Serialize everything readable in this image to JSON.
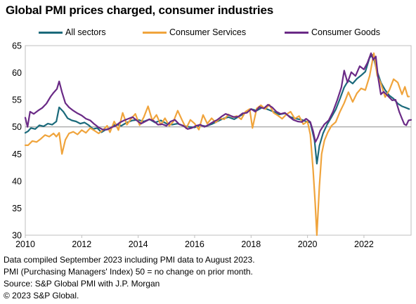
{
  "title": "Global PMI prices charged, consumer industries",
  "footer": [
    "Data compiled September 2023 including PMI data to August 2023.",
    "PMI (Purchasing Managers' Index) 50 = no change on prior month.",
    "Source: S&P Global PMI with J.P. Morgan",
    "© 2023 S&P Global."
  ],
  "chart_data": {
    "type": "line",
    "title": "Global PMI prices charged, consumer industries",
    "xlabel": "",
    "ylabel": "",
    "xlim": [
      2010,
      2023.67
    ],
    "ylim": [
      30,
      65
    ],
    "x_ticks": [
      "2010",
      "2012",
      "2014",
      "2016",
      "2018",
      "2020",
      "2022"
    ],
    "y_ticks": [
      "30",
      "35",
      "40",
      "45",
      "50",
      "55",
      "60",
      "65"
    ],
    "reference_line": 50,
    "grid": false,
    "legend_position": "top",
    "series": [
      {
        "name": "All sectors",
        "color": "#1b6a7b",
        "points": [
          [
            2010.0,
            48.9
          ],
          [
            2010.1,
            49.2
          ],
          [
            2010.2,
            49.8
          ],
          [
            2010.35,
            49.6
          ],
          [
            2010.5,
            50.3
          ],
          [
            2010.65,
            50.1
          ],
          [
            2010.8,
            50.6
          ],
          [
            2010.95,
            50.4
          ],
          [
            2011.1,
            51.0
          ],
          [
            2011.2,
            53.6
          ],
          [
            2011.35,
            52.8
          ],
          [
            2011.5,
            51.6
          ],
          [
            2011.65,
            51.2
          ],
          [
            2011.8,
            51.0
          ],
          [
            2011.95,
            50.6
          ],
          [
            2012.1,
            50.8
          ],
          [
            2012.25,
            50.3
          ],
          [
            2012.4,
            49.6
          ],
          [
            2012.55,
            49.8
          ],
          [
            2012.7,
            49.0
          ],
          [
            2012.85,
            49.5
          ],
          [
            2013.0,
            49.7
          ],
          [
            2013.2,
            50.5
          ],
          [
            2013.4,
            50.2
          ],
          [
            2013.6,
            50.8
          ],
          [
            2013.8,
            51.2
          ],
          [
            2014.0,
            51.3
          ],
          [
            2014.2,
            51.0
          ],
          [
            2014.4,
            51.4
          ],
          [
            2014.6,
            50.8
          ],
          [
            2014.8,
            51.2
          ],
          [
            2015.0,
            50.6
          ],
          [
            2015.2,
            50.4
          ],
          [
            2015.4,
            50.6
          ],
          [
            2015.6,
            50.2
          ],
          [
            2015.8,
            50.0
          ],
          [
            2016.0,
            49.9
          ],
          [
            2016.2,
            50.3
          ],
          [
            2016.4,
            50.1
          ],
          [
            2016.6,
            50.5
          ],
          [
            2016.8,
            51.0
          ],
          [
            2017.0,
            51.5
          ],
          [
            2017.2,
            51.8
          ],
          [
            2017.4,
            51.4
          ],
          [
            2017.6,
            52.0
          ],
          [
            2017.8,
            52.6
          ],
          [
            2018.0,
            53.3
          ],
          [
            2018.2,
            53.0
          ],
          [
            2018.4,
            53.6
          ],
          [
            2018.6,
            53.2
          ],
          [
            2018.8,
            52.8
          ],
          [
            2019.0,
            52.3
          ],
          [
            2019.2,
            52.5
          ],
          [
            2019.4,
            51.8
          ],
          [
            2019.6,
            51.5
          ],
          [
            2019.8,
            51.3
          ],
          [
            2019.95,
            51.0
          ],
          [
            2020.1,
            50.8
          ],
          [
            2020.25,
            47.5
          ],
          [
            2020.33,
            43.2
          ],
          [
            2020.42,
            46.5
          ],
          [
            2020.55,
            48.8
          ],
          [
            2020.7,
            50.5
          ],
          [
            2020.85,
            51.8
          ],
          [
            2021.0,
            53.2
          ],
          [
            2021.15,
            55.2
          ],
          [
            2021.3,
            57.3
          ],
          [
            2021.45,
            58.6
          ],
          [
            2021.6,
            58.0
          ],
          [
            2021.75,
            58.9
          ],
          [
            2021.9,
            59.5
          ],
          [
            2022.05,
            60.2
          ],
          [
            2022.2,
            62.8
          ],
          [
            2022.32,
            63.3
          ],
          [
            2022.45,
            60.5
          ],
          [
            2022.6,
            58.2
          ],
          [
            2022.75,
            56.8
          ],
          [
            2022.9,
            55.8
          ],
          [
            2023.05,
            55.2
          ],
          [
            2023.2,
            54.3
          ],
          [
            2023.35,
            53.8
          ],
          [
            2023.5,
            53.5
          ],
          [
            2023.6,
            53.3
          ]
        ]
      },
      {
        "name": "Consumer Services",
        "color": "#f0a43c",
        "points": [
          [
            2010.0,
            46.6
          ],
          [
            2010.1,
            46.6
          ],
          [
            2010.25,
            47.4
          ],
          [
            2010.4,
            47.2
          ],
          [
            2010.55,
            47.8
          ],
          [
            2010.7,
            48.5
          ],
          [
            2010.85,
            48.2
          ],
          [
            2011.0,
            48.8
          ],
          [
            2011.1,
            48.2
          ],
          [
            2011.2,
            48.9
          ],
          [
            2011.3,
            45.0
          ],
          [
            2011.42,
            47.6
          ],
          [
            2011.55,
            48.8
          ],
          [
            2011.7,
            49.1
          ],
          [
            2011.85,
            48.6
          ],
          [
            2012.0,
            49.4
          ],
          [
            2012.15,
            48.9
          ],
          [
            2012.3,
            49.8
          ],
          [
            2012.45,
            49.3
          ],
          [
            2012.6,
            48.8
          ],
          [
            2012.75,
            49.4
          ],
          [
            2012.9,
            50.2
          ],
          [
            2013.0,
            49.0
          ],
          [
            2013.15,
            51.0
          ],
          [
            2013.3,
            49.4
          ],
          [
            2013.45,
            52.6
          ],
          [
            2013.6,
            50.4
          ],
          [
            2013.75,
            51.5
          ],
          [
            2013.9,
            52.4
          ],
          [
            2014.05,
            50.3
          ],
          [
            2014.2,
            51.8
          ],
          [
            2014.35,
            53.8
          ],
          [
            2014.5,
            51.2
          ],
          [
            2014.65,
            52.2
          ],
          [
            2014.8,
            50.4
          ],
          [
            2014.95,
            51.6
          ],
          [
            2015.1,
            50.2
          ],
          [
            2015.25,
            51.0
          ],
          [
            2015.4,
            53.0
          ],
          [
            2015.55,
            51.3
          ],
          [
            2015.7,
            49.7
          ],
          [
            2015.85,
            51.3
          ],
          [
            2016.0,
            50.6
          ],
          [
            2016.15,
            49.5
          ],
          [
            2016.3,
            52.2
          ],
          [
            2016.45,
            50.6
          ],
          [
            2016.6,
            51.6
          ],
          [
            2016.75,
            50.8
          ],
          [
            2016.9,
            51.6
          ],
          [
            2017.05,
            51.4
          ],
          [
            2017.2,
            52.3
          ],
          [
            2017.35,
            51.8
          ],
          [
            2017.5,
            52.0
          ],
          [
            2017.65,
            51.4
          ],
          [
            2017.8,
            52.8
          ],
          [
            2017.95,
            53.3
          ],
          [
            2018.05,
            49.8
          ],
          [
            2018.2,
            53.4
          ],
          [
            2018.35,
            54.0
          ],
          [
            2018.5,
            53.3
          ],
          [
            2018.65,
            54.1
          ],
          [
            2018.8,
            52.6
          ],
          [
            2018.95,
            52.1
          ],
          [
            2019.1,
            51.5
          ],
          [
            2019.25,
            52.3
          ],
          [
            2019.4,
            52.8
          ],
          [
            2019.55,
            51.5
          ],
          [
            2019.7,
            52.0
          ],
          [
            2019.85,
            50.5
          ],
          [
            2020.0,
            51.0
          ],
          [
            2020.1,
            48.6
          ],
          [
            2020.2,
            42.0
          ],
          [
            2020.27,
            36.0
          ],
          [
            2020.33,
            30.0
          ],
          [
            2020.42,
            39.0
          ],
          [
            2020.5,
            45.0
          ],
          [
            2020.6,
            47.5
          ],
          [
            2020.72,
            49.0
          ],
          [
            2020.85,
            50.2
          ],
          [
            2021.0,
            50.9
          ],
          [
            2021.15,
            52.8
          ],
          [
            2021.3,
            54.4
          ],
          [
            2021.45,
            56.4
          ],
          [
            2021.6,
            54.6
          ],
          [
            2021.75,
            56.2
          ],
          [
            2021.9,
            57.1
          ],
          [
            2022.05,
            56.8
          ],
          [
            2022.2,
            59.4
          ],
          [
            2022.35,
            63.6
          ],
          [
            2022.47,
            59.5
          ],
          [
            2022.6,
            58.0
          ],
          [
            2022.75,
            55.5
          ],
          [
            2022.9,
            56.8
          ],
          [
            2023.05,
            58.8
          ],
          [
            2023.2,
            58.2
          ],
          [
            2023.35,
            56.0
          ],
          [
            2023.45,
            57.4
          ],
          [
            2023.55,
            55.6
          ],
          [
            2023.6,
            55.6
          ]
        ]
      },
      {
        "name": "Consumer Goods",
        "color": "#6a2a86",
        "points": [
          [
            2010.0,
            51.7
          ],
          [
            2010.08,
            50.0
          ],
          [
            2010.17,
            52.8
          ],
          [
            2010.3,
            52.4
          ],
          [
            2010.45,
            53.0
          ],
          [
            2010.6,
            53.5
          ],
          [
            2010.75,
            54.3
          ],
          [
            2010.9,
            55.6
          ],
          [
            2011.0,
            56.3
          ],
          [
            2011.12,
            57.0
          ],
          [
            2011.2,
            58.4
          ],
          [
            2011.3,
            56.4
          ],
          [
            2011.42,
            54.4
          ],
          [
            2011.55,
            53.6
          ],
          [
            2011.7,
            53.0
          ],
          [
            2011.85,
            52.5
          ],
          [
            2012.0,
            52.1
          ],
          [
            2012.15,
            51.5
          ],
          [
            2012.3,
            51.2
          ],
          [
            2012.45,
            50.5
          ],
          [
            2012.6,
            49.9
          ],
          [
            2012.75,
            49.5
          ],
          [
            2012.9,
            49.5
          ],
          [
            2013.05,
            49.9
          ],
          [
            2013.2,
            50.2
          ],
          [
            2013.35,
            50.8
          ],
          [
            2013.5,
            51.2
          ],
          [
            2013.65,
            51.5
          ],
          [
            2013.8,
            51.8
          ],
          [
            2013.95,
            51.2
          ],
          [
            2014.1,
            50.6
          ],
          [
            2014.25,
            51.0
          ],
          [
            2014.4,
            51.4
          ],
          [
            2014.55,
            51.1
          ],
          [
            2014.7,
            50.4
          ],
          [
            2014.85,
            50.5
          ],
          [
            2015.0,
            50.2
          ],
          [
            2015.15,
            51.0
          ],
          [
            2015.3,
            51.3
          ],
          [
            2015.45,
            50.5
          ],
          [
            2015.6,
            50.2
          ],
          [
            2015.75,
            49.6
          ],
          [
            2015.9,
            49.8
          ],
          [
            2016.05,
            50.2
          ],
          [
            2016.2,
            50.4
          ],
          [
            2016.35,
            50.0
          ],
          [
            2016.5,
            50.4
          ],
          [
            2016.65,
            50.9
          ],
          [
            2016.8,
            51.3
          ],
          [
            2016.95,
            51.9
          ],
          [
            2017.1,
            52.4
          ],
          [
            2017.25,
            52.1
          ],
          [
            2017.4,
            51.8
          ],
          [
            2017.55,
            51.9
          ],
          [
            2017.7,
            52.5
          ],
          [
            2017.85,
            52.6
          ],
          [
            2018.0,
            53.3
          ],
          [
            2018.15,
            52.8
          ],
          [
            2018.3,
            53.7
          ],
          [
            2018.45,
            53.4
          ],
          [
            2018.6,
            54.1
          ],
          [
            2018.75,
            53.6
          ],
          [
            2018.9,
            52.8
          ],
          [
            2019.05,
            52.4
          ],
          [
            2019.2,
            52.6
          ],
          [
            2019.35,
            51.9
          ],
          [
            2019.5,
            51.3
          ],
          [
            2019.65,
            51.0
          ],
          [
            2019.8,
            50.9
          ],
          [
            2019.95,
            51.5
          ],
          [
            2020.1,
            50.9
          ],
          [
            2020.2,
            49.2
          ],
          [
            2020.28,
            47.2
          ],
          [
            2020.36,
            48.0
          ],
          [
            2020.45,
            49.3
          ],
          [
            2020.6,
            50.5
          ],
          [
            2020.75,
            51.2
          ],
          [
            2020.9,
            52.8
          ],
          [
            2021.05,
            54.9
          ],
          [
            2021.2,
            57.3
          ],
          [
            2021.3,
            60.4
          ],
          [
            2021.42,
            58.2
          ],
          [
            2021.55,
            60.1
          ],
          [
            2021.7,
            59.4
          ],
          [
            2021.85,
            61.2
          ],
          [
            2022.0,
            60.6
          ],
          [
            2022.12,
            61.8
          ],
          [
            2022.25,
            63.6
          ],
          [
            2022.33,
            62.4
          ],
          [
            2022.42,
            63.0
          ],
          [
            2022.5,
            59.2
          ],
          [
            2022.6,
            56.0
          ],
          [
            2022.7,
            56.5
          ],
          [
            2022.85,
            55.7
          ],
          [
            2023.0,
            54.9
          ],
          [
            2023.12,
            55.0
          ],
          [
            2023.25,
            52.8
          ],
          [
            2023.35,
            51.5
          ],
          [
            2023.43,
            50.5
          ],
          [
            2023.5,
            50.3
          ],
          [
            2023.58,
            51.2
          ],
          [
            2023.67,
            51.3
          ]
        ]
      }
    ]
  }
}
